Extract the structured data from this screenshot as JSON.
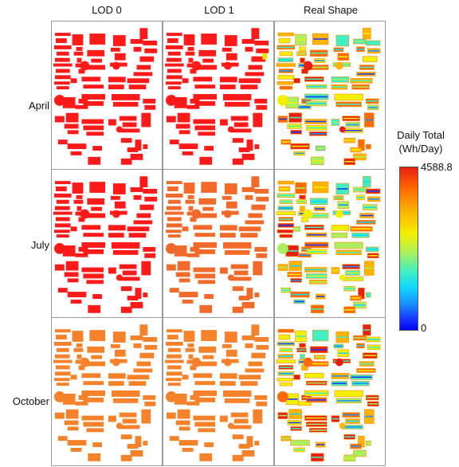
{
  "chart_data": {
    "type": "heatmap",
    "columns": [
      "LOD 0",
      "LOD 1",
      "Real Shape"
    ],
    "rows": [
      "April",
      "July",
      "October"
    ],
    "colorbar": {
      "title_line1": "Daily Total",
      "title_line2": "(Wh/Day)",
      "max_label": "4588.8",
      "min_label": "0",
      "range": [
        0,
        4588.8
      ],
      "colors": [
        "#0000ff",
        "#1890ff",
        "#10d8ff",
        "#40f0c0",
        "#a8f060",
        "#f0f000",
        "#ffb300",
        "#ff6a00",
        "#e81f10"
      ]
    },
    "panel_fill": {
      "April": {
        "LOD 0": "#ff1a1a",
        "LOD 1": "#ff1a1a",
        "Real Shape": "mixed"
      },
      "July": {
        "LOD 0": "#ff1a1a",
        "LOD 1": "#f26a2a",
        "Real Shape": "mixed"
      },
      "October": {
        "LOD 0": "#f5822a",
        "LOD 1": "#f5822a",
        "Real Shape": "mixed"
      }
    }
  }
}
